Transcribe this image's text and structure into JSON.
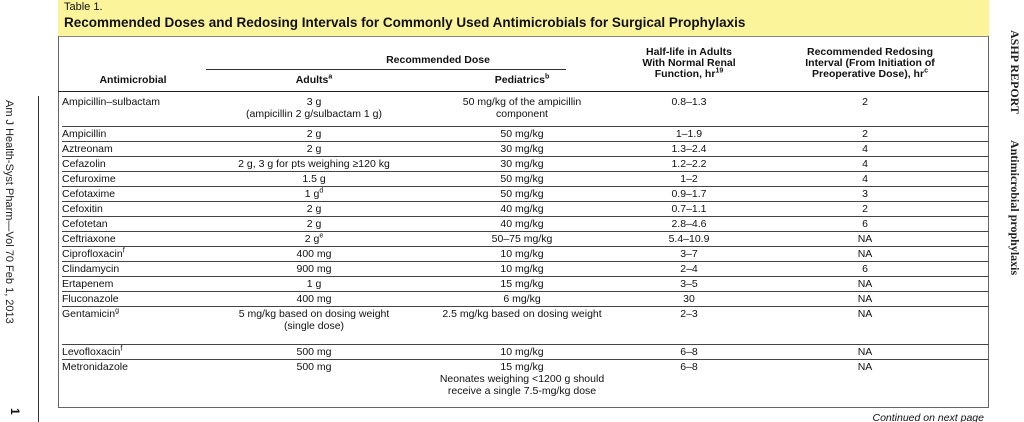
{
  "table": {
    "number": "Table 1.",
    "title": "Recommended Doses and Redosing Intervals for Commonly Used Antimicrobials for Surgical Prophylaxis"
  },
  "side": {
    "left_journal": "Am J Health-Syst Pharm—Vol 70  Feb 1, 2013",
    "left_page": "1",
    "right_section": "ASHP REPORT",
    "right_topic": "Antimicrobial prophylaxis"
  },
  "headers": {
    "antimicrobial": "Antimicrobial",
    "recommended_dose": "Recommended Dose",
    "adults": "Adults",
    "adults_sup": "a",
    "pediatrics": "Pediatrics",
    "pediatrics_sup": "b",
    "half_life_1": "Half-life in Adults",
    "half_life_2": "With Normal Renal",
    "half_life_3": "Function, hr",
    "half_life_sup": "19",
    "redose_1": "Recommended Redosing",
    "redose_2": "Interval (From Initiation of",
    "redose_3": "Preoperative Dose), hr",
    "redose_sup": "c"
  },
  "rows": [
    {
      "name": "Ampicillin–sulbactam",
      "name_sup": "",
      "adult": "3 g",
      "adult_sup": "",
      "adult2": "(ampicillin 2 g/sulbactam 1 g)",
      "ped": "50 mg/kg of the ampicillin",
      "ped2": "component",
      "half": "0.8–1.3",
      "redose": "2"
    },
    {
      "name": "Ampicillin",
      "name_sup": "",
      "adult": "2 g",
      "adult_sup": "",
      "adult2": "",
      "ped": "50 mg/kg",
      "ped2": "",
      "half": "1–1.9",
      "redose": "2"
    },
    {
      "name": "Aztreonam",
      "name_sup": "",
      "adult": "2 g",
      "adult_sup": "",
      "adult2": "",
      "ped": "30 mg/kg",
      "ped2": "",
      "half": "1.3–2.4",
      "redose": "4"
    },
    {
      "name": "Cefazolin",
      "name_sup": "",
      "adult": "2 g, 3 g for pts weighing ≥120 kg",
      "adult_sup": "",
      "adult2": "",
      "ped": "30 mg/kg",
      "ped2": "",
      "half": "1.2–2.2",
      "redose": "4"
    },
    {
      "name": "Cefuroxime",
      "name_sup": "",
      "adult": "1.5 g",
      "adult_sup": "",
      "adult2": "",
      "ped": "50 mg/kg",
      "ped2": "",
      "half": "1–2",
      "redose": "4"
    },
    {
      "name": "Cefotaxime",
      "name_sup": "",
      "adult": "1 g",
      "adult_sup": "d",
      "adult2": "",
      "ped": "50 mg/kg",
      "ped2": "",
      "half": "0.9–1.7",
      "redose": "3"
    },
    {
      "name": "Cefoxitin",
      "name_sup": "",
      "adult": "2 g",
      "adult_sup": "",
      "adult2": "",
      "ped": "40 mg/kg",
      "ped2": "",
      "half": "0.7–1.1",
      "redose": "2"
    },
    {
      "name": "Cefotetan",
      "name_sup": "",
      "adult": "2 g",
      "adult_sup": "",
      "adult2": "",
      "ped": "40 mg/kg",
      "ped2": "",
      "half": "2.8–4.6",
      "redose": "6"
    },
    {
      "name": "Ceftriaxone",
      "name_sup": "",
      "adult": "2 g",
      "adult_sup": "e",
      "adult2": "",
      "ped": "50–75 mg/kg",
      "ped2": "",
      "half": "5.4–10.9",
      "redose": "NA"
    },
    {
      "name": "Ciprofloxacin",
      "name_sup": "f",
      "adult": "400 mg",
      "adult_sup": "",
      "adult2": "",
      "ped": "10 mg/kg",
      "ped2": "",
      "half": "3–7",
      "redose": "NA"
    },
    {
      "name": "Clindamycin",
      "name_sup": "",
      "adult": "900 mg",
      "adult_sup": "",
      "adult2": "",
      "ped": "10 mg/kg",
      "ped2": "",
      "half": "2–4",
      "redose": "6"
    },
    {
      "name": "Ertapenem",
      "name_sup": "",
      "adult": "1 g",
      "adult_sup": "",
      "adult2": "",
      "ped": "15 mg/kg",
      "ped2": "",
      "half": "3–5",
      "redose": "NA"
    },
    {
      "name": "Fluconazole",
      "name_sup": "",
      "adult": "400 mg",
      "adult_sup": "",
      "adult2": "",
      "ped": "6 mg/kg",
      "ped2": "",
      "half": "30",
      "redose": "NA"
    },
    {
      "name": "Gentamicin",
      "name_sup": "g",
      "adult": "5 mg/kg based on dosing weight",
      "adult_sup": "",
      "adult2": "(single dose)",
      "ped": "2.5 mg/kg based on dosing weight",
      "ped2": "",
      "half": "2–3",
      "redose": "NA"
    },
    {
      "name": "Levofloxacin",
      "name_sup": "f",
      "adult": "500 mg",
      "adult_sup": "",
      "adult2": "",
      "ped": "10 mg/kg",
      "ped2": "",
      "half": "6–8",
      "redose": "NA"
    },
    {
      "name": "Metronidazole",
      "name_sup": "",
      "adult": "500 mg",
      "adult_sup": "",
      "adult2": "",
      "ped": "15 mg/kg",
      "ped2": "Neonates weighing <1200 g should",
      "ped3": "receive a single 7.5-mg/kg dose",
      "half": "6–8",
      "redose": "NA"
    }
  ],
  "footer": {
    "continued": "Continued on next page"
  }
}
